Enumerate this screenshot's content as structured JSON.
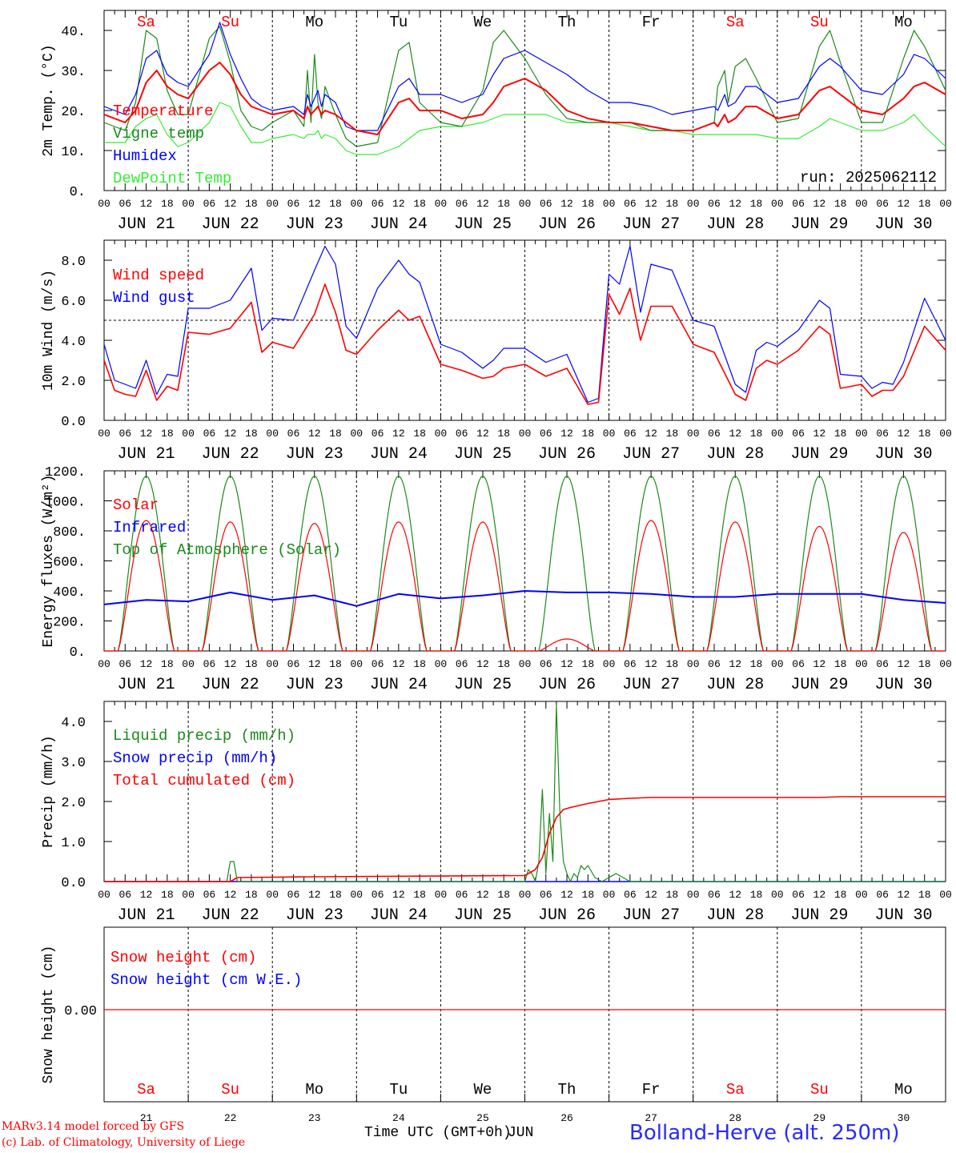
{
  "meetings": {
    "days": [
      "Sa",
      "Su",
      "Mo",
      "Tu",
      "We",
      "Th",
      "Fr",
      "Sa",
      "Su",
      "Mo"
    ],
    "weekend_days": [
      0,
      1,
      7,
      8
    ],
    "dates": [
      "JUN 21",
      "JUN 22",
      "JUN 23",
      "JUN 24",
      "JUN 25",
      "JUN 26",
      "JUN 27",
      "JUN 28",
      "JUN 29",
      "JUN 30"
    ],
    "date_numbers": [
      "21",
      "22",
      "23",
      "24",
      "25",
      "26",
      "27",
      "28",
      "29",
      "30"
    ],
    "hour_labels": [
      "00",
      "06",
      "12",
      "18"
    ],
    "final_hour_label": "00"
  },
  "colors": {
    "red": "#ff0000",
    "green": "#1a8a1a",
    "blue": "#0000ff",
    "lightgreen": "#33ee33",
    "weekend": "#ff0000",
    "weekday": "#000000"
  },
  "footer": {
    "credit_line1": "MARv3.14 model forced by GFS",
    "credit_line2": "(c) Lab. of Climatology, University of Liege",
    "xaxis_title": "Time UTC (GMT+0h)",
    "xaxis_title_overlay": "JUN",
    "station": "Bolland-Herve (alt. 250m)"
  },
  "chart_data": [
    {
      "type": "line",
      "ylabel": "2m Temp. (°C)",
      "ylim": [
        0,
        45
      ],
      "yticks": [
        0,
        10,
        20,
        30,
        40
      ],
      "ytick_labels": [
        "0.",
        "10.",
        "20.",
        "30.",
        "40."
      ],
      "annotation": "run: 2025062112",
      "x_hours": [
        0,
        6,
        9,
        12,
        15,
        18,
        21,
        24,
        30,
        33,
        36,
        39,
        42,
        45,
        48,
        54,
        57,
        58,
        59,
        60,
        61,
        62,
        63,
        66,
        69,
        72,
        78,
        84,
        87,
        90,
        96,
        102,
        108,
        111,
        114,
        120,
        126,
        132,
        138,
        144,
        150,
        156,
        162,
        168,
        174,
        175,
        177,
        178,
        180,
        183,
        186,
        192,
        198,
        204,
        207,
        210,
        216,
        222,
        228,
        231,
        234,
        240
      ],
      "series": [
        {
          "name": "Temperature",
          "color": "red",
          "values": [
            19,
            17,
            20,
            27,
            30,
            26,
            24,
            23,
            30,
            32,
            29,
            24,
            21,
            20,
            19,
            20,
            18,
            21,
            19,
            20,
            21,
            19,
            20,
            19,
            17,
            15,
            14,
            22,
            23,
            20,
            20,
            18,
            19,
            22,
            26,
            28,
            25,
            20,
            18,
            17,
            17,
            16,
            15,
            15,
            17,
            16,
            19,
            17,
            18,
            21,
            21,
            18,
            19,
            25,
            26,
            24,
            20,
            19,
            23,
            26,
            27,
            24
          ]
        },
        {
          "name": "Vigne temp",
          "color": "green",
          "values": [
            17,
            15,
            22,
            40,
            38,
            25,
            19,
            19,
            38,
            41,
            32,
            20,
            16,
            15,
            17,
            20,
            16,
            30,
            17,
            34,
            22,
            18,
            26,
            19,
            13,
            11,
            12,
            35,
            37,
            22,
            17,
            16,
            25,
            37,
            40,
            33,
            24,
            18,
            17,
            17,
            17,
            15,
            15,
            15,
            17,
            26,
            30,
            22,
            31,
            33,
            28,
            17,
            18,
            36,
            40,
            32,
            17,
            17,
            33,
            40,
            36,
            25
          ]
        },
        {
          "name": "Humidex",
          "color": "blue",
          "values": [
            21,
            19,
            24,
            33,
            35,
            29,
            27,
            26,
            34,
            42,
            34,
            28,
            23,
            21,
            20,
            21,
            19,
            24,
            21,
            23,
            25,
            21,
            24,
            22,
            16,
            15,
            15,
            26,
            28,
            24,
            24,
            22,
            24,
            29,
            33,
            35,
            32,
            29,
            25,
            22,
            22,
            21,
            19,
            20,
            21,
            20,
            24,
            21,
            22,
            26,
            26,
            22,
            23,
            31,
            33,
            31,
            25,
            24,
            29,
            34,
            33,
            28
          ]
        },
        {
          "name": "DewPoint Temp",
          "color": "lightgreen",
          "values": [
            12,
            12,
            16,
            18,
            19,
            14,
            11,
            12,
            17,
            22,
            21,
            16,
            12,
            12,
            13,
            14,
            13,
            14,
            14,
            14,
            15,
            13,
            14,
            13,
            10,
            9,
            9,
            11,
            13,
            15,
            16,
            16,
            17,
            18,
            19,
            19,
            19,
            17,
            17,
            17,
            16,
            15,
            15,
            14,
            14,
            14,
            14,
            14,
            14,
            14,
            14,
            13,
            13,
            16,
            18,
            17,
            15,
            15,
            17,
            19,
            16,
            11
          ]
        }
      ]
    },
    {
      "type": "line",
      "ylabel": "10m Wind (m/s)",
      "ylim": [
        0,
        9
      ],
      "yticks": [
        0,
        2,
        4,
        6,
        8
      ],
      "ytick_labels": [
        "0.0",
        "2.0",
        "4.0",
        "6.0",
        "8.0"
      ],
      "reference_line": 5.0,
      "x_hours": [
        0,
        3,
        6,
        9,
        12,
        15,
        18,
        21,
        24,
        30,
        36,
        42,
        45,
        48,
        54,
        60,
        63,
        66,
        69,
        72,
        78,
        84,
        87,
        90,
        96,
        102,
        108,
        111,
        114,
        120,
        126,
        132,
        138,
        141,
        144,
        147,
        150,
        153,
        156,
        162,
        168,
        174,
        180,
        183,
        186,
        189,
        192,
        198,
        204,
        207,
        210,
        216,
        219,
        222,
        225,
        228,
        234,
        240
      ],
      "series": [
        {
          "name": "Wind speed",
          "color": "red",
          "values": [
            3,
            1.5,
            1.3,
            1.2,
            2.5,
            1.0,
            1.7,
            1.5,
            4.4,
            4.3,
            4.6,
            5.9,
            3.4,
            3.9,
            3.6,
            5.3,
            6.8,
            5.4,
            3.5,
            3.3,
            4.5,
            5.5,
            5.0,
            5.2,
            2.8,
            2.5,
            2.1,
            2.2,
            2.6,
            2.8,
            2.2,
            2.6,
            0.8,
            0.9,
            6.3,
            5.3,
            6.6,
            4.0,
            5.7,
            5.7,
            3.8,
            3.4,
            1.3,
            1.0,
            2.6,
            3.0,
            2.8,
            3.5,
            4.7,
            4.3,
            1.6,
            1.8,
            1.2,
            1.5,
            1.5,
            2.2,
            4.7,
            3.5
          ]
        },
        {
          "name": "Wind gust",
          "color": "blue",
          "values": [
            3.8,
            2.0,
            1.8,
            1.6,
            3.0,
            1.3,
            2.3,
            2.2,
            5.6,
            5.6,
            6.0,
            7.6,
            4.5,
            5.1,
            5.0,
            7.5,
            8.7,
            7.8,
            4.7,
            4.1,
            6.6,
            8.0,
            7.3,
            6.9,
            3.8,
            3.4,
            2.6,
            3.0,
            3.6,
            3.6,
            2.9,
            3.3,
            0.9,
            1.1,
            7.3,
            6.8,
            8.7,
            5.4,
            7.8,
            7.5,
            5.0,
            4.7,
            1.8,
            1.4,
            3.5,
            3.9,
            3.7,
            4.5,
            6.0,
            5.6,
            2.3,
            2.2,
            1.6,
            1.9,
            1.8,
            2.9,
            6.1,
            4.0
          ]
        }
      ]
    },
    {
      "type": "line",
      "ylabel": "Energy fluxes (W/m²)",
      "ylim": [
        0,
        1200
      ],
      "yticks": [
        0,
        200,
        400,
        600,
        800,
        1000,
        1200
      ],
      "ytick_labels": [
        "0.",
        "200.",
        "400.",
        "600.",
        "800.",
        "1000.",
        "1200."
      ],
      "solar_daily_peak": [
        870,
        860,
        850,
        860,
        860,
        80,
        870,
        860,
        830,
        790
      ],
      "toa_daily_peak": [
        1165,
        1165,
        1165,
        1165,
        1165,
        1165,
        1165,
        1165,
        1165,
        1165
      ],
      "sunrise_hour": 4,
      "sunset_hour": 20,
      "infrared_hours": [
        0,
        12,
        24,
        36,
        48,
        60,
        72,
        84,
        96,
        108,
        120,
        132,
        144,
        156,
        168,
        180,
        192,
        204,
        216,
        228,
        240
      ],
      "series": [
        {
          "name": "Solar",
          "color": "red",
          "values": "solar_daily_peak"
        },
        {
          "name": "Infrared",
          "color": "blue",
          "values": [
            310,
            340,
            330,
            390,
            340,
            370,
            300,
            380,
            350,
            370,
            400,
            390,
            390,
            380,
            360,
            360,
            380,
            380,
            380,
            340,
            320
          ]
        },
        {
          "name": "Top of Atmosphere (Solar)",
          "color": "green",
          "values": "toa_daily_peak"
        }
      ]
    },
    {
      "type": "line",
      "ylabel": "Precip (mm/h)",
      "ylim": [
        0,
        4.5
      ],
      "yticks": [
        0,
        1,
        2,
        3,
        4
      ],
      "ytick_labels": [
        "0.0",
        "1.0",
        "2.0",
        "3.0",
        "4.0"
      ],
      "x_hours": [
        0,
        35,
        36,
        37,
        38,
        39,
        120,
        121,
        122,
        123,
        124,
        125,
        126,
        127,
        128,
        129,
        130,
        131,
        132,
        133,
        134,
        135,
        136,
        137,
        138,
        140,
        142,
        146,
        150,
        152,
        240
      ],
      "series": [
        {
          "name": "Liquid precip (mm/h)",
          "color": "green",
          "values": [
            0,
            0,
            0.5,
            0.5,
            0,
            0,
            0,
            0.3,
            0.2,
            0,
            0.5,
            2.3,
            0.2,
            1.7,
            0.5,
            4.4,
            1.7,
            0.5,
            0.2,
            0,
            0.2,
            0.1,
            0.4,
            0.3,
            0.4,
            0.1,
            0,
            0.2,
            0,
            0,
            0
          ]
        },
        {
          "name": "Snow precip (mm/h)",
          "color": "blue",
          "values": [
            0,
            0,
            0,
            0,
            0,
            0,
            0,
            0,
            0,
            0,
            0,
            0,
            0,
            0,
            0,
            0,
            0,
            0,
            0,
            0,
            0,
            0,
            0,
            0,
            0,
            0,
            0,
            0,
            0,
            0,
            0
          ]
        },
        {
          "name": "Total cumulated (cm)",
          "color": "red",
          "cum_hours": [
            0,
            36,
            38,
            60,
            120,
            121,
            123,
            125,
            127,
            129,
            131,
            133,
            138,
            144,
            150,
            156,
            168,
            192,
            204,
            210,
            240
          ],
          "values": [
            0,
            0,
            0.1,
            0.12,
            0.15,
            0.2,
            0.3,
            0.6,
            1.2,
            1.6,
            1.8,
            1.85,
            1.95,
            2.05,
            2.08,
            2.1,
            2.1,
            2.1,
            2.1,
            2.12,
            2.12
          ]
        }
      ]
    },
    {
      "type": "line",
      "ylabel": "Snow height (cm)",
      "yticks": [
        0
      ],
      "ytick_labels": [
        "0.00"
      ],
      "series": [
        {
          "name": "Snow height (cm)",
          "color": "red",
          "values": [
            0,
            0
          ]
        },
        {
          "name": "Snow height (cm W.E.)",
          "color": "blue",
          "values": [
            0,
            0
          ]
        }
      ]
    }
  ]
}
